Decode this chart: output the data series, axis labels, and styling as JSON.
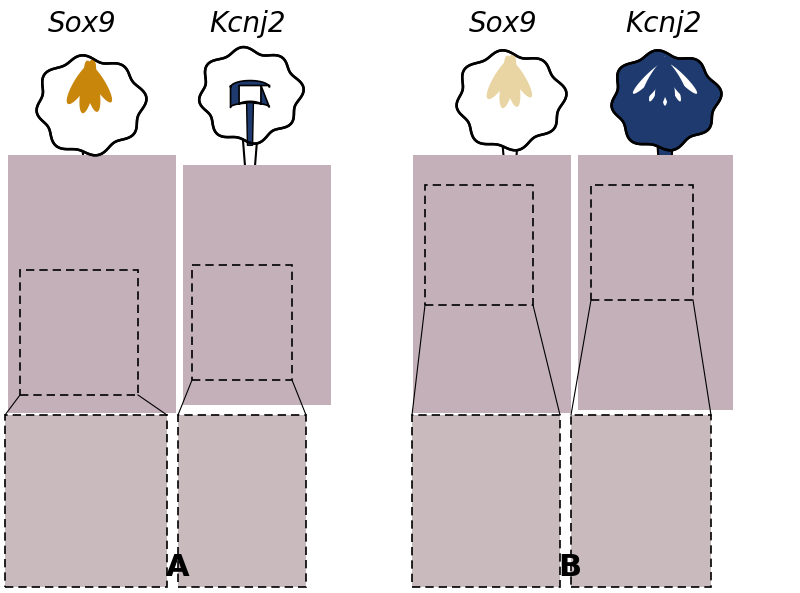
{
  "panel_A_label": "A",
  "panel_B_label": "B",
  "col_labels_A": [
    "Sox9",
    "Kcnj2"
  ],
  "col_labels_B": [
    "Sox9",
    "Kcnj2"
  ],
  "sox9_color_A": "#C8860A",
  "kcnj2_color_A": "#1E3A6E",
  "sox9_color_B": "#E8D5A3",
  "kcnj2_color_B": "#1E3A6E",
  "bg_color": "#FFFFFF",
  "label_fontsize": 22,
  "col_label_fontsize": 20,
  "figure_width": 8.0,
  "figure_height": 5.93
}
